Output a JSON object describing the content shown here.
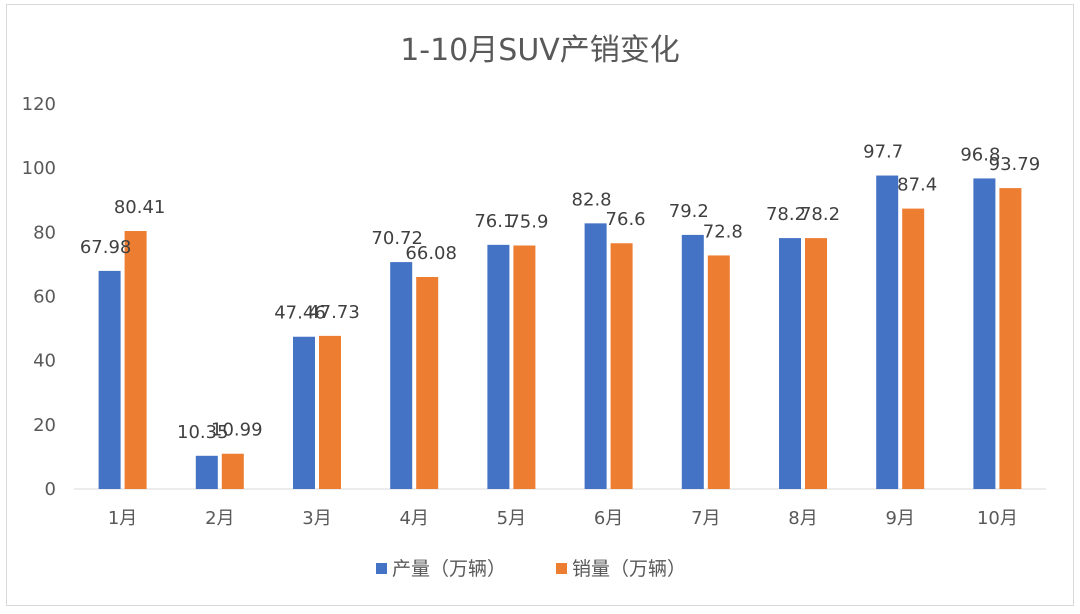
{
  "chart_data": {
    "type": "bar",
    "title": "1-10月SUV产销变化",
    "categories": [
      "1月",
      "2月",
      "3月",
      "4月",
      "5月",
      "6月",
      "7月",
      "8月",
      "9月",
      "10月"
    ],
    "series": [
      {
        "name": "产量（万辆）",
        "color": "#4472C4",
        "values": [
          67.98,
          10.35,
          47.46,
          70.72,
          76.1,
          82.8,
          79.2,
          78.2,
          97.7,
          96.8
        ]
      },
      {
        "name": "销量（万辆）",
        "color": "#ED7D31",
        "values": [
          80.41,
          10.99,
          47.73,
          66.08,
          75.9,
          76.6,
          72.8,
          78.2,
          87.4,
          93.79
        ]
      }
    ],
    "ylim": [
      0,
      120
    ],
    "yticks": [
      0,
      20,
      40,
      60,
      80,
      100,
      120
    ],
    "grid": false,
    "legend": "bottom"
  }
}
